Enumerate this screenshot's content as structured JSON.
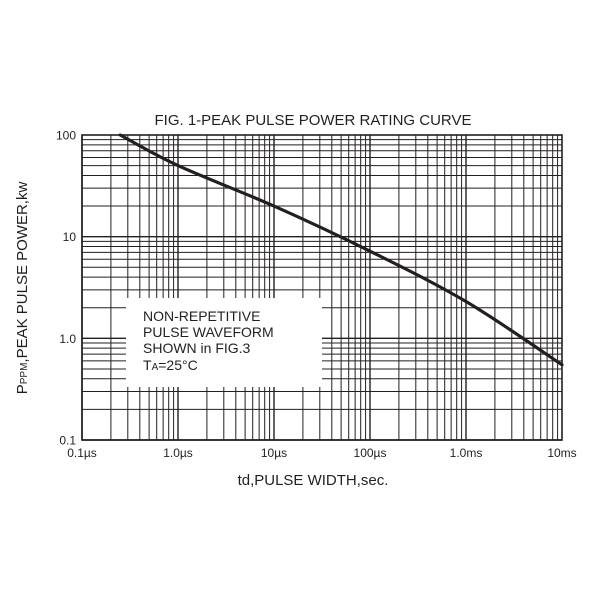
{
  "chart_data": {
    "type": "line",
    "title": "FIG. 1-PEAK PULSE POWER RATING CURVE",
    "xlabel": "td,PULSE WIDTH,sec.",
    "ylabel": "Pppm,PEAK PULSE POWER,kw",
    "x_scale": "log",
    "y_scale": "log",
    "x_unit": "µs",
    "y_unit": "kW",
    "xlim": [
      0.1,
      10000
    ],
    "ylim": [
      0.1,
      100
    ],
    "grid": true,
    "xticks": [
      {
        "value": 0.1,
        "label": "0.1µs"
      },
      {
        "value": 1,
        "label": "1.0µs"
      },
      {
        "value": 10,
        "label": "10µs"
      },
      {
        "value": 100,
        "label": "100µs"
      },
      {
        "value": 1000,
        "label": "1.0ms"
      },
      {
        "value": 10000,
        "label": "10ms"
      }
    ],
    "yticks": [
      {
        "value": 0.1,
        "label": "0.1"
      },
      {
        "value": 1,
        "label": "1.0"
      },
      {
        "value": 10,
        "label": "10"
      },
      {
        "value": 100,
        "label": "100"
      }
    ],
    "series": [
      {
        "x": [
          0.25,
          1,
          10,
          100,
          1000,
          10000
        ],
        "y": [
          100,
          50,
          20,
          7.2,
          2.3,
          0.55
        ],
        "color": "#231f20"
      }
    ],
    "annotation": {
      "lines": [
        "NON-REPETITIVE",
        "PULSE WAVEFORM",
        "SHOWN in FIG.3"
      ],
      "temp_prefix": "T",
      "temp_subscript": "A",
      "temp_value": "=25°C"
    }
  }
}
